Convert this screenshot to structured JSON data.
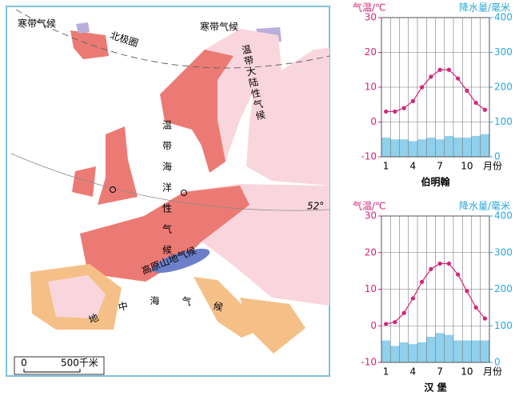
{
  "map": {
    "labels": {
      "polar_left": "寒带气候",
      "polar_right": "寒带气候",
      "arctic_circle": "北极圈",
      "continental": "温带大陆性气候",
      "oceanic": "温带海洋性气候",
      "highland": "高原山地气候",
      "mediterranean": "地中海气候",
      "parallel": "52°",
      "scale_zero": "0",
      "scale_length": "500千米"
    }
  },
  "chart_data": [
    {
      "type": "climate",
      "title": "伯明翰",
      "xlabel": "月份",
      "ylabel": "气温/℃",
      "y2label": "降水量/毫米",
      "categories": [
        1,
        null,
        null,
        4,
        null,
        null,
        7,
        null,
        null,
        10,
        null,
        null
      ],
      "series": [
        {
          "type": "bar",
          "axis": "y2",
          "color": "#8fd0ec",
          "values": [
            55,
            50,
            50,
            45,
            50,
            55,
            50,
            60,
            55,
            55,
            60,
            65
          ]
        },
        {
          "type": "line",
          "color": "#d6247a",
          "values": [
            3,
            3,
            4,
            6,
            10,
            13,
            15,
            15,
            12.5,
            9,
            5.5,
            3.5
          ]
        }
      ],
      "ylim": [
        -10,
        30
      ],
      "yticks": [
        -10,
        0,
        10,
        20,
        30
      ],
      "y2lim": [
        0,
        400
      ],
      "y2ticks": [
        0,
        100,
        200,
        300,
        400
      ],
      "grid": true
    },
    {
      "type": "climate",
      "title": "汉 堡",
      "xlabel": "月份",
      "ylabel": "气温/℃",
      "y2label": "降水量/毫米",
      "categories": [
        1,
        null,
        null,
        4,
        null,
        null,
        7,
        null,
        null,
        10,
        null,
        null
      ],
      "series": [
        {
          "type": "bar",
          "axis": "y2",
          "color": "#8fd0ec",
          "values": [
            60,
            45,
            55,
            50,
            55,
            70,
            80,
            75,
            60,
            60,
            60,
            60
          ]
        },
        {
          "type": "line",
          "color": "#d6247a",
          "values": [
            0.5,
            1,
            3.5,
            7.5,
            12,
            15.5,
            17,
            17,
            14,
            9.5,
            5,
            2
          ]
        }
      ],
      "ylim": [
        -10,
        30
      ],
      "yticks": [
        -10,
        0,
        10,
        20,
        30
      ],
      "y2lim": [
        0,
        400
      ],
      "y2ticks": [
        0,
        100,
        200,
        300,
        400
      ],
      "grid": true
    }
  ]
}
